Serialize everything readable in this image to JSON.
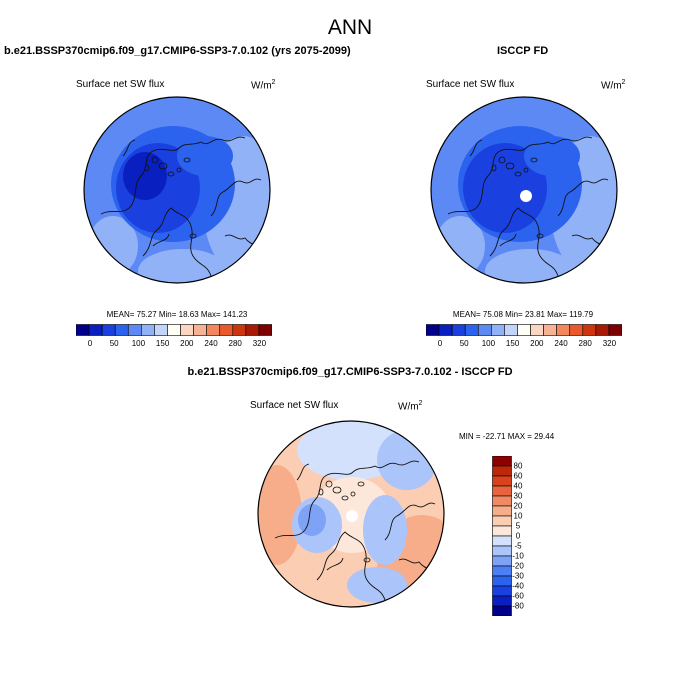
{
  "title": "ANN",
  "colors": {
    "blue": [
      "#00008b",
      "#0a1fbf",
      "#1a41e0",
      "#2c63ee",
      "#5d89f5",
      "#92b2f7",
      "#c3d4fa"
    ],
    "white": "#fffff6",
    "red": [
      "#fbd6c3",
      "#f7b293",
      "#f2875e",
      "#e8592c",
      "#cd3510",
      "#a81a05",
      "#7d0000"
    ],
    "diff_blue": [
      "#00008b",
      "#0a1fbf",
      "#1a41e0",
      "#2c63ee",
      "#4c7ff3",
      "#7ea2f6",
      "#abc4f9",
      "#d3e1fc"
    ],
    "diff_red": [
      "#fde7db",
      "#fbcdb3",
      "#f7ad8a",
      "#f18a62",
      "#e8643d",
      "#d9421c",
      "#bf270b",
      "#8b0000"
    ]
  },
  "panels": {
    "left": {
      "title": "b.e21.BSSP370cmip6.f09_g17.CMIP6-SSP3-7.0.102 (yrs 2075-2099)",
      "variable": "Surface net SW flux",
      "units": "W/m",
      "units_exp": "2",
      "stats": "MEAN=  75.27  Min=  18.63  Max= 141.23"
    },
    "right": {
      "title": "ISCCP FD",
      "variable": "Surface net SW flux",
      "units": "W/m",
      "units_exp": "2",
      "stats": "MEAN=  75.08  Min=  23.81  Max= 119.79"
    },
    "diff": {
      "title": "b.e21.BSSP370cmip6.f09_g17.CMIP6-SSP3-7.0.102 - ISCCP FD",
      "variable": "Surface net SW flux",
      "units": "W/m",
      "units_exp": "2",
      "stats": "MIN = -22.71 MAX =  29.44"
    }
  },
  "chart_data": [
    {
      "type": "heatmap",
      "projection": "north polar stereographic",
      "title": "b.e21.BSSP370cmip6.f09_g17.CMIP6-SSP3-7.0.102 (yrs 2075-2099)",
      "variable": "Surface net SW flux",
      "units": "W/m^2",
      "mean": 75.27,
      "min": 18.63,
      "max": 141.23,
      "colorbar_levels": [
        0,
        25,
        50,
        75,
        100,
        125,
        150,
        175,
        200,
        240,
        260,
        280,
        300,
        320
      ],
      "colorbar_ticks": [
        "0",
        "50",
        "100",
        "150",
        "200",
        "240",
        "280",
        "320"
      ]
    },
    {
      "type": "heatmap",
      "projection": "north polar stereographic",
      "title": "ISCCP FD",
      "variable": "Surface net SW flux",
      "units": "W/m^2",
      "mean": 75.08,
      "min": 23.81,
      "max": 119.79,
      "colorbar_levels": [
        0,
        25,
        50,
        75,
        100,
        125,
        150,
        175,
        200,
        240,
        260,
        280,
        300,
        320
      ],
      "colorbar_ticks": [
        "0",
        "50",
        "100",
        "150",
        "200",
        "240",
        "280",
        "320"
      ]
    },
    {
      "type": "heatmap",
      "projection": "north polar stereographic",
      "title": "b.e21.BSSP370cmip6.f09_g17.CMIP6-SSP3-7.0.102 - ISCCP FD",
      "variable": "Surface net SW flux",
      "units": "W/m^2",
      "min": -22.71,
      "max": 29.44,
      "colorbar_levels": [
        "80",
        "60",
        "40",
        "30",
        "20",
        "10",
        "5",
        "0",
        "-5",
        "-10",
        "-20",
        "-30",
        "-40",
        "-60",
        "-80"
      ]
    }
  ]
}
